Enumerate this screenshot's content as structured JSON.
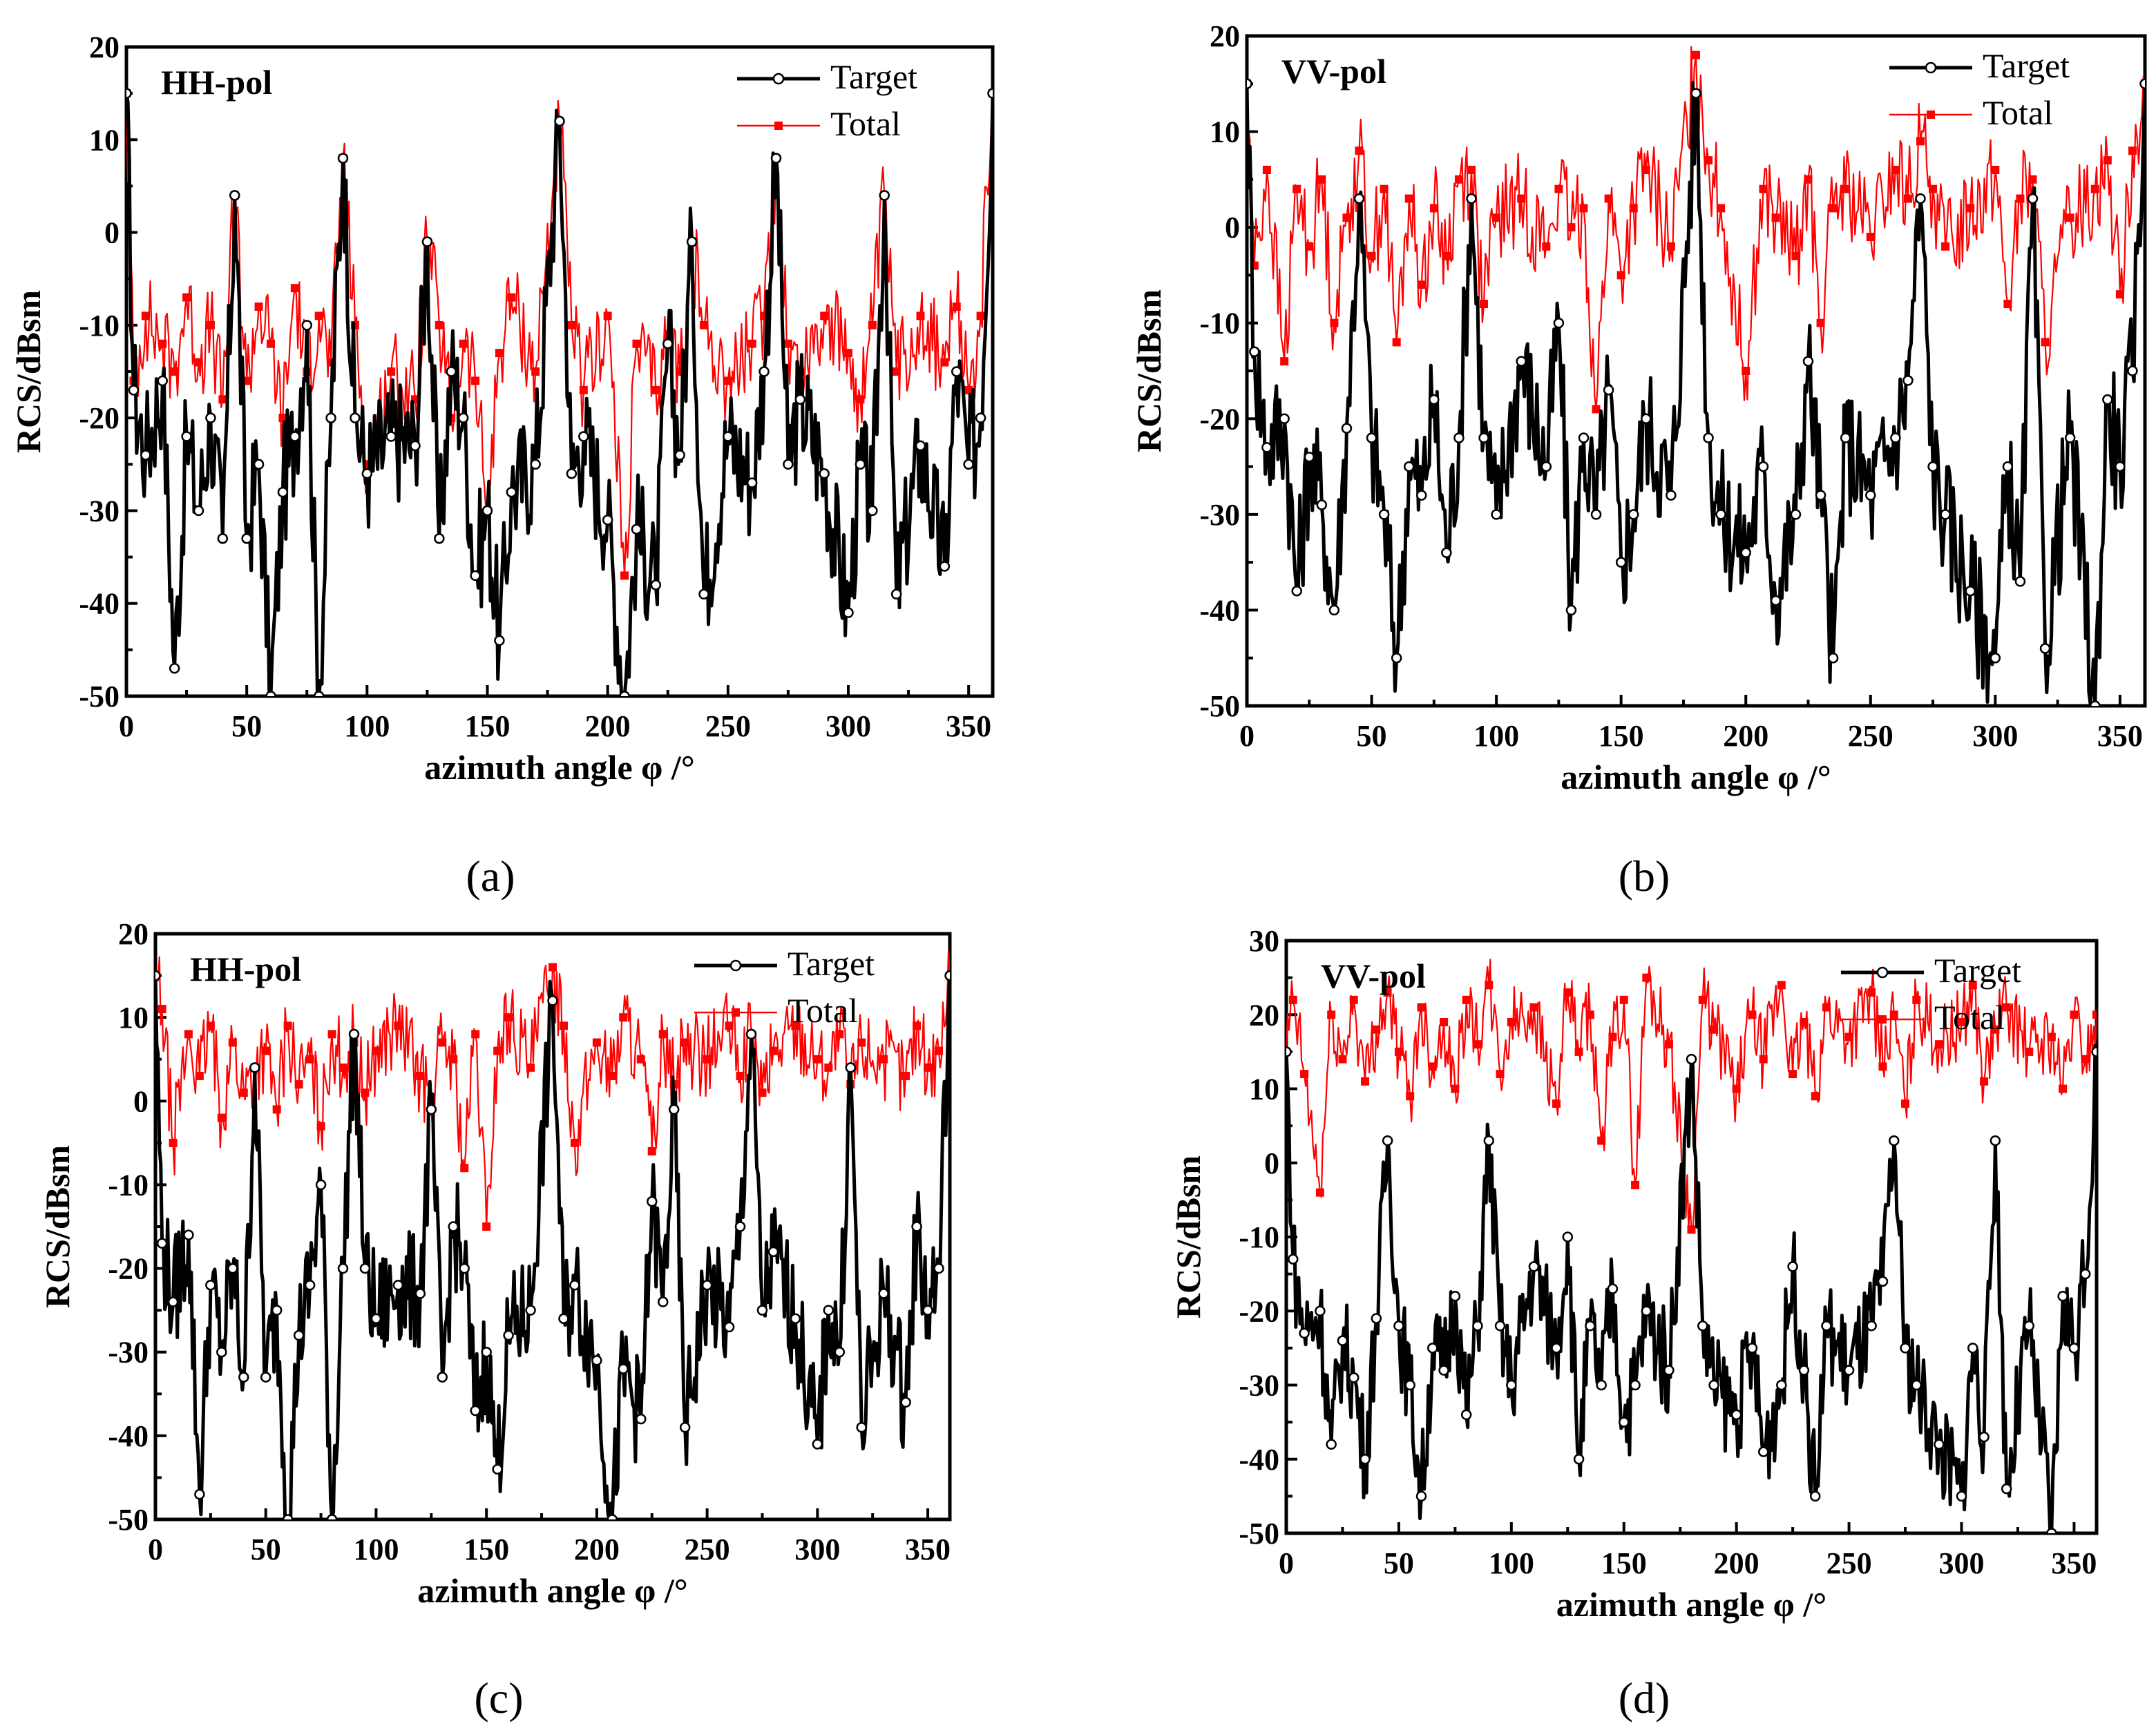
{
  "colors": {
    "target": "#000000",
    "total": "#ff0000"
  },
  "chart_data": [
    {
      "id": "a",
      "type": "line",
      "panel_label": "(a)",
      "pol_label": "HH-pol",
      "xlabel": "azimuth angle φ  /°",
      "ylabel": "RCS/dBsm",
      "xlim": [
        0,
        360
      ],
      "ylim": [
        -50,
        20
      ],
      "xticks": [
        0,
        50,
        100,
        150,
        200,
        250,
        300,
        350
      ],
      "yticks": [
        -50,
        -40,
        -30,
        -20,
        -10,
        0,
        10,
        20
      ],
      "legend": [
        "Target",
        "Total"
      ],
      "series": [
        {
          "name": "Target",
          "x": [
            0,
            3,
            8,
            15,
            20,
            25,
            30,
            35,
            40,
            45,
            50,
            55,
            60,
            65,
            70,
            75,
            80,
            85,
            90,
            95,
            100,
            110,
            120,
            125,
            130,
            135,
            140,
            145,
            150,
            155,
            160,
            170,
            180,
            185,
            190,
            200,
            207,
            212,
            220,
            225,
            230,
            235,
            240,
            250,
            260,
            265,
            270,
            275,
            280,
            290,
            300,
            305,
            310,
            315,
            320,
            330,
            340,
            345,
            350,
            355,
            360
          ],
          "values": [
            15,
            -17,
            -24,
            -16,
            -47,
            -22,
            -30,
            -20,
            -33,
            4,
            -33,
            -25,
            -50,
            -28,
            -22,
            -10,
            -50,
            -20,
            8,
            -20,
            -26,
            -22,
            -23,
            -1,
            -33,
            -15,
            -20,
            -37,
            -30,
            -44,
            -28,
            -25,
            12,
            -26,
            -22,
            -31,
            -50,
            -32,
            -38,
            -12,
            -24,
            -1,
            -39,
            -22,
            -27,
            -15,
            8,
            -25,
            -18,
            -26,
            -41,
            -25,
            -30,
            4,
            -39,
            -23,
            -36,
            -15,
            -25,
            -20,
            15
          ]
        },
        {
          "name": "Total",
          "x": [
            0,
            3,
            8,
            15,
            20,
            25,
            30,
            35,
            40,
            45,
            50,
            55,
            60,
            65,
            70,
            75,
            80,
            85,
            90,
            95,
            100,
            110,
            120,
            125,
            130,
            135,
            140,
            145,
            150,
            155,
            160,
            170,
            180,
            185,
            190,
            200,
            207,
            212,
            220,
            225,
            230,
            235,
            240,
            250,
            260,
            265,
            270,
            275,
            280,
            290,
            300,
            305,
            310,
            315,
            320,
            330,
            340,
            345,
            350,
            355,
            360
          ],
          "values": [
            15,
            -16,
            -9,
            -12,
            -15,
            -7,
            -14,
            -10,
            -18,
            4,
            -16,
            -8,
            -12,
            -20,
            -6,
            -15,
            -9,
            -14,
            8,
            -10,
            -25,
            -15,
            -18,
            -1,
            -10,
            -20,
            -12,
            -16,
            -30,
            -13,
            -7,
            -15,
            12,
            -10,
            -17,
            -9,
            -37,
            -12,
            -17,
            -11,
            -15,
            -1,
            -10,
            -16,
            -12,
            -9,
            8,
            -12,
            -15,
            -9,
            -13,
            -18,
            -10,
            4,
            -15,
            -9,
            -14,
            -8,
            -17,
            -9,
            15
          ]
        }
      ]
    },
    {
      "id": "b",
      "type": "line",
      "panel_label": "(b)",
      "pol_label": "VV-pol",
      "xlabel": "azimuth angle φ  /°",
      "ylabel": "RCS/dBsm",
      "xlim": [
        0,
        360
      ],
      "ylim": [
        -50,
        20
      ],
      "xticks": [
        0,
        50,
        100,
        150,
        200,
        250,
        300,
        350
      ],
      "yticks": [
        -50,
        -40,
        -30,
        -20,
        -10,
        0,
        10,
        20
      ],
      "legend": [
        "Target",
        "Total"
      ],
      "series": [
        {
          "name": "Target",
          "x": [
            0,
            3,
            8,
            15,
            20,
            25,
            30,
            35,
            40,
            45,
            50,
            55,
            60,
            65,
            70,
            75,
            80,
            85,
            90,
            95,
            100,
            110,
            120,
            125,
            130,
            135,
            140,
            145,
            150,
            155,
            160,
            170,
            180,
            185,
            190,
            200,
            207,
            212,
            220,
            225,
            230,
            235,
            240,
            250,
            260,
            265,
            270,
            275,
            280,
            290,
            300,
            305,
            310,
            315,
            320,
            330,
            340,
            345,
            350,
            355,
            360
          ],
          "values": [
            15,
            -13,
            -23,
            -20,
            -38,
            -24,
            -29,
            -40,
            -21,
            3,
            -22,
            -30,
            -45,
            -25,
            -28,
            -18,
            -34,
            -22,
            3,
            -22,
            -30,
            -14,
            -25,
            -10,
            -40,
            -22,
            -30,
            -17,
            -35,
            -30,
            -20,
            -28,
            14,
            -22,
            -30,
            -34,
            -25,
            -39,
            -30,
            -14,
            -28,
            -45,
            -22,
            -28,
            -22,
            -16,
            3,
            -25,
            -30,
            -38,
            -45,
            -25,
            -37,
            3,
            -44,
            -22,
            -50,
            -18,
            -25,
            -15,
            15
          ]
        },
        {
          "name": "Total",
          "x": [
            0,
            3,
            8,
            15,
            20,
            25,
            30,
            35,
            40,
            45,
            50,
            55,
            60,
            65,
            70,
            75,
            80,
            85,
            90,
            95,
            100,
            110,
            120,
            125,
            130,
            135,
            140,
            145,
            150,
            155,
            160,
            170,
            180,
            185,
            190,
            200,
            207,
            212,
            220,
            225,
            230,
            235,
            240,
            250,
            260,
            265,
            270,
            275,
            280,
            290,
            300,
            305,
            310,
            315,
            320,
            330,
            340,
            345,
            350,
            355,
            360
          ],
          "values": [
            15,
            -4,
            6,
            -14,
            4,
            -2,
            5,
            -10,
            1,
            8,
            -3,
            4,
            -12,
            3,
            -6,
            2,
            -3,
            5,
            6,
            -8,
            1,
            3,
            -2,
            4,
            0,
            2,
            -19,
            3,
            -5,
            2,
            6,
            -2,
            18,
            7,
            2,
            -15,
            4,
            1,
            -3,
            5,
            -10,
            2,
            4,
            -1,
            6,
            3,
            9,
            4,
            -2,
            2,
            6,
            -8,
            3,
            5,
            -12,
            1,
            4,
            7,
            -7,
            8,
            15
          ]
        }
      ]
    },
    {
      "id": "c",
      "type": "line",
      "panel_label": "(c)",
      "pol_label": "HH-pol",
      "xlabel": "azimuth angle φ  /°",
      "ylabel": "RCS/dBsm",
      "xlim": [
        0,
        360
      ],
      "ylim": [
        -50,
        20
      ],
      "xticks": [
        0,
        50,
        100,
        150,
        200,
        250,
        300,
        350
      ],
      "yticks": [
        -50,
        -40,
        -30,
        -20,
        -10,
        0,
        10,
        20
      ],
      "legend": [
        "Target",
        "Total"
      ],
      "series": [
        {
          "name": "Target",
          "x": [
            0,
            3,
            8,
            15,
            20,
            25,
            30,
            35,
            40,
            45,
            50,
            55,
            60,
            65,
            70,
            75,
            80,
            85,
            90,
            95,
            100,
            110,
            120,
            125,
            130,
            135,
            140,
            145,
            150,
            155,
            160,
            170,
            180,
            185,
            190,
            200,
            207,
            212,
            220,
            225,
            230,
            235,
            240,
            250,
            260,
            265,
            270,
            275,
            280,
            290,
            300,
            305,
            310,
            315,
            320,
            330,
            340,
            345,
            350,
            355,
            360
          ],
          "values": [
            15,
            -17,
            -24,
            -16,
            -47,
            -22,
            -30,
            -20,
            -33,
            4,
            -33,
            -25,
            -50,
            -28,
            -22,
            -10,
            -50,
            -20,
            8,
            -20,
            -26,
            -22,
            -23,
            -1,
            -33,
            -15,
            -20,
            -37,
            -30,
            -44,
            -28,
            -25,
            12,
            -26,
            -22,
            -31,
            -50,
            -32,
            -38,
            -12,
            -24,
            -1,
            -39,
            -22,
            -27,
            -15,
            8,
            -25,
            -18,
            -26,
            -41,
            -25,
            -30,
            4,
            -39,
            -23,
            -36,
            -15,
            -25,
            -20,
            15
          ]
        },
        {
          "name": "Total",
          "x": [
            0,
            3,
            8,
            15,
            20,
            25,
            30,
            35,
            40,
            45,
            50,
            55,
            60,
            65,
            70,
            75,
            80,
            85,
            90,
            95,
            100,
            110,
            120,
            125,
            130,
            135,
            140,
            145,
            150,
            155,
            160,
            170,
            180,
            185,
            190,
            200,
            207,
            212,
            220,
            225,
            230,
            235,
            240,
            250,
            260,
            265,
            270,
            275,
            280,
            290,
            300,
            305,
            310,
            315,
            320,
            330,
            340,
            345,
            350,
            355,
            360
          ],
          "values": [
            15,
            11,
            -5,
            8,
            3,
            9,
            -2,
            7,
            1,
            4,
            6,
            -1,
            9,
            2,
            5,
            -3,
            8,
            4,
            7,
            1,
            6,
            9,
            3,
            0,
            7,
            5,
            -8,
            8,
            -15,
            6,
            10,
            4,
            16,
            9,
            -5,
            7,
            3,
            10,
            5,
            -6,
            8,
            2,
            7,
            5,
            9,
            3,
            8,
            1,
            6,
            9,
            5,
            4,
            8,
            2,
            7,
            5,
            3,
            9,
            4,
            6,
            15
          ]
        }
      ]
    },
    {
      "id": "d",
      "type": "line",
      "panel_label": "(d)",
      "pol_label": "VV-pol",
      "xlabel": "azimuth angle φ  /°",
      "ylabel": "RCS/dBsm",
      "xlim": [
        0,
        360
      ],
      "ylim": [
        -50,
        30
      ],
      "xticks": [
        0,
        50,
        100,
        150,
        200,
        250,
        300,
        350
      ],
      "yticks": [
        -50,
        -40,
        -30,
        -20,
        -10,
        0,
        10,
        20,
        30
      ],
      "legend": [
        "Target",
        "Total"
      ],
      "series": [
        {
          "name": "Target",
          "x": [
            0,
            3,
            8,
            15,
            20,
            25,
            30,
            35,
            40,
            45,
            50,
            55,
            60,
            65,
            70,
            75,
            80,
            85,
            90,
            95,
            100,
            110,
            120,
            125,
            130,
            135,
            140,
            145,
            150,
            155,
            160,
            170,
            180,
            185,
            190,
            200,
            207,
            212,
            220,
            225,
            230,
            235,
            240,
            250,
            260,
            265,
            270,
            275,
            280,
            290,
            300,
            305,
            310,
            315,
            320,
            330,
            340,
            345,
            350,
            355,
            360
          ],
          "values": [
            15,
            -13,
            -23,
            -20,
            -38,
            -24,
            -29,
            -40,
            -21,
            3,
            -22,
            -30,
            -45,
            -25,
            -28,
            -18,
            -34,
            -22,
            3,
            -22,
            -30,
            -14,
            -25,
            -10,
            -40,
            -22,
            -30,
            -17,
            -35,
            -30,
            -20,
            -28,
            14,
            -22,
            -30,
            -34,
            -25,
            -39,
            -30,
            -14,
            -28,
            -45,
            -22,
            -28,
            -22,
            -16,
            3,
            -25,
            -30,
            -38,
            -45,
            -25,
            -37,
            3,
            -44,
            -22,
            -50,
            -18,
            -25,
            -15,
            15
          ]
        },
        {
          "name": "Total",
          "x": [
            0,
            3,
            8,
            15,
            20,
            25,
            30,
            35,
            40,
            45,
            50,
            55,
            60,
            65,
            70,
            75,
            80,
            85,
            90,
            95,
            100,
            110,
            120,
            125,
            130,
            135,
            140,
            145,
            150,
            155,
            160,
            170,
            180,
            185,
            190,
            200,
            207,
            212,
            220,
            225,
            230,
            235,
            240,
            250,
            260,
            265,
            270,
            275,
            280,
            290,
            300,
            305,
            310,
            315,
            320,
            330,
            340,
            345,
            350,
            355,
            360
          ],
          "values": [
            15,
            22,
            12,
            -4,
            20,
            14,
            22,
            11,
            18,
            23,
            15,
            9,
            21,
            13,
            19,
            10,
            22,
            16,
            24,
            12,
            19,
            21,
            8,
            23,
            15,
            20,
            3,
            17,
            22,
            -3,
            25,
            16,
            -9,
            22,
            18,
            10,
            20,
            14,
            24,
            12,
            19,
            9,
            21,
            17,
            23,
            13,
            20,
            8,
            22,
            16,
            19,
            24,
            11,
            18,
            21,
            15,
            17,
            10,
            20,
            14,
            20
          ]
        }
      ]
    }
  ]
}
